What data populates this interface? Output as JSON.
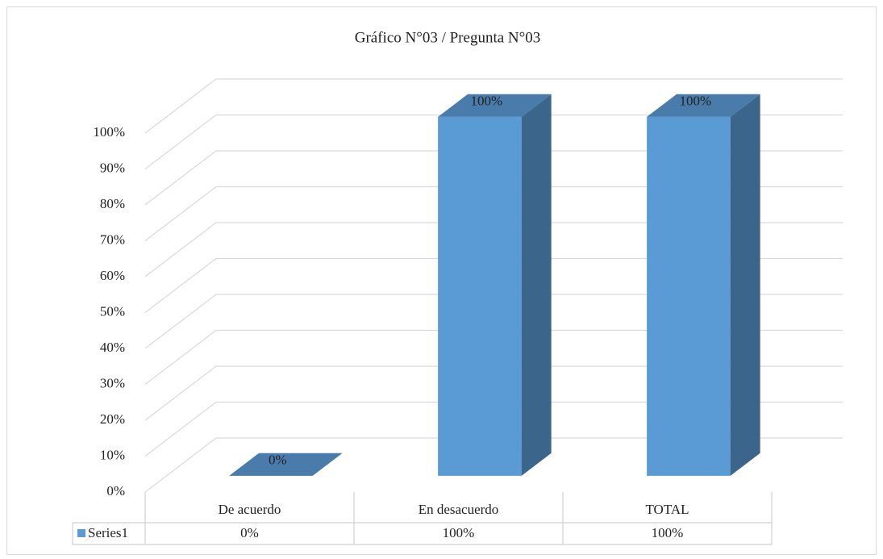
{
  "chart_data": {
    "type": "bar3d",
    "title": "Gráfico N°03 / Pregunta N°03",
    "categories": [
      "De acuerdo",
      "En desacuerdo",
      "TOTAL"
    ],
    "series": [
      {
        "name": "Series1",
        "color": "#5b9bd5",
        "values": [
          0,
          100,
          100
        ],
        "value_labels": [
          "0%",
          "100%",
          "100%"
        ]
      }
    ],
    "ylim": [
      0,
      100
    ],
    "yticks": [
      {
        "value": 0,
        "label": "0%"
      },
      {
        "value": 10,
        "label": "10%"
      },
      {
        "value": 20,
        "label": "20%"
      },
      {
        "value": 30,
        "label": "30%"
      },
      {
        "value": 40,
        "label": "40%"
      },
      {
        "value": 50,
        "label": "50%"
      },
      {
        "value": 60,
        "label": "60%"
      },
      {
        "value": 70,
        "label": "70%"
      },
      {
        "value": 80,
        "label": "80%"
      },
      {
        "value": 90,
        "label": "90%"
      },
      {
        "value": 100,
        "label": "100%"
      }
    ],
    "grid": true,
    "data_table": true
  }
}
